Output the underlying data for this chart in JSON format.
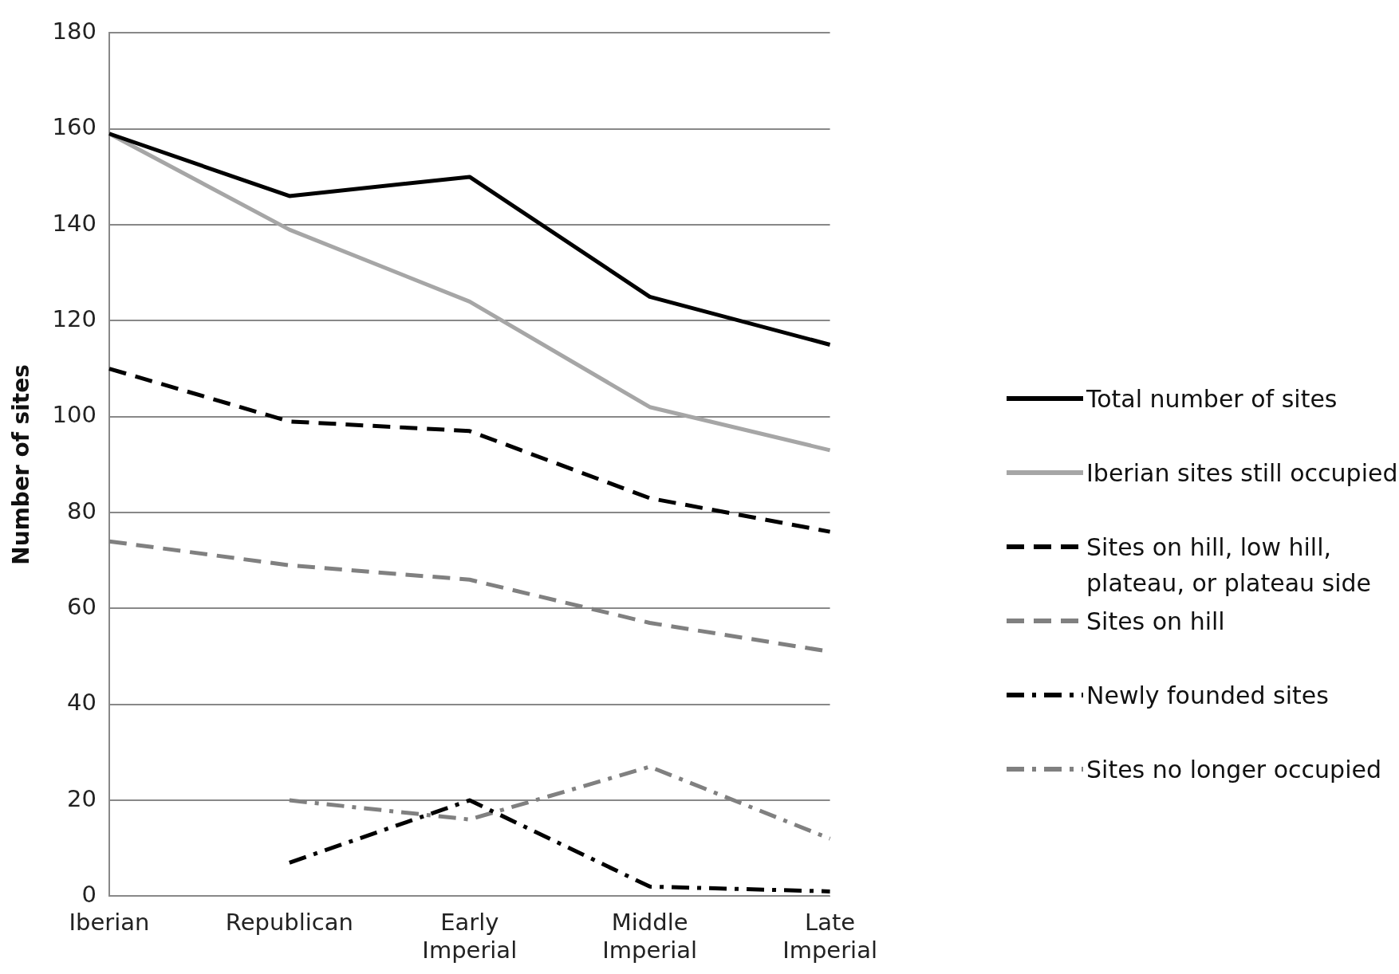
{
  "chart_data": {
    "type": "line",
    "ylabel": "Number of sites",
    "categories": [
      "Iberian",
      "Republican",
      "Early Imperial",
      "Middle Imperial",
      "Late Imperial"
    ],
    "ylim": [
      0,
      180
    ],
    "yticks": [
      0,
      20,
      40,
      60,
      80,
      100,
      120,
      140,
      160,
      180
    ],
    "grid": "y",
    "legend": "right",
    "marker": "none",
    "series": [
      {
        "name": "Total number of sites",
        "color": "#000000",
        "line_style": "solid",
        "values": [
          159,
          146,
          150,
          125,
          115
        ]
      },
      {
        "name": "Iberian sites still occupied",
        "color": "#a6a6a6",
        "line_style": "solid",
        "values": [
          159,
          139,
          124,
          102,
          93
        ]
      },
      {
        "name": "Sites on hill, low hill, plateau, or plateau side",
        "color": "#000000",
        "line_style": "dashed",
        "values": [
          110,
          99,
          97,
          83,
          76
        ]
      },
      {
        "name": "Sites on hill",
        "color": "#808080",
        "line_style": "dashed",
        "values": [
          74,
          69,
          66,
          57,
          51
        ]
      },
      {
        "name": "Newly founded sites",
        "color": "#000000",
        "line_style": "dashdot",
        "values": [
          null,
          7,
          20,
          2,
          1
        ]
      },
      {
        "name": "Sites no longer occupied",
        "color": "#808080",
        "line_style": "dashdot",
        "values": [
          null,
          20,
          16,
          27,
          12
        ]
      }
    ]
  }
}
